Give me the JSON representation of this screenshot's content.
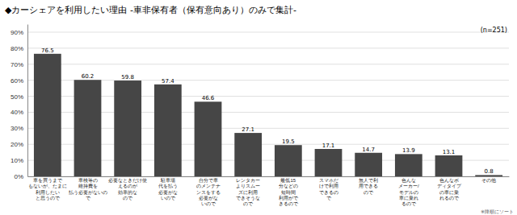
{
  "chart_data": {
    "type": "bar",
    "title": "◆カーシェアを利用したい理由  -車非保有者（保有意向あり）のみで集計-",
    "annotations": [
      "(n=251)",
      "※降順にソート"
    ],
    "categories": [
      "車を買うまで\nもないが、たまに\n利用したい\nと思うので",
      "車検等の\n維持費を\n払う必要がないの\nで",
      "必要なときだけ使\nえるのが\n効率的な\nので",
      "駐車場\n代を払う\n必要がな\nいので",
      "自分で車\nのメンテナ\nンスをする\n必要がな\nいので",
      "レンタカー\nよりスムー\nズに利用\nできそうな\nので",
      "最低15\n分などの\n短時間\n利用がで\nきるので",
      "スマホだ\nけで利用\nできるの\nで",
      "無人で利\n用できる\nので",
      "色んな\nメーカー/\nモデルの\n車に乗れ\nるので",
      "色んなボ\nディタイプ\nの車に乗\nれるので",
      "その他"
    ],
    "values": [
      76.5,
      60.2,
      59.8,
      57.4,
      46.6,
      27.1,
      19.5,
      17.1,
      14.7,
      13.9,
      13.1,
      0.8
    ],
    "color": "#464646",
    "ylim": [
      0,
      95
    ],
    "yticks": [
      {
        "value": 0,
        "label": "0%"
      },
      {
        "value": 10,
        "label": "10%"
      },
      {
        "value": 20,
        "label": "20%"
      },
      {
        "value": 30,
        "label": "30%"
      },
      {
        "value": 40,
        "label": "40%"
      },
      {
        "value": 50,
        "label": "50%"
      },
      {
        "value": 60,
        "label": "60%"
      },
      {
        "value": 70,
        "label": "70%"
      },
      {
        "value": 80,
        "label": "80%"
      },
      {
        "value": 90,
        "label": "90%"
      }
    ],
    "grid": true,
    "data_labels": true
  }
}
